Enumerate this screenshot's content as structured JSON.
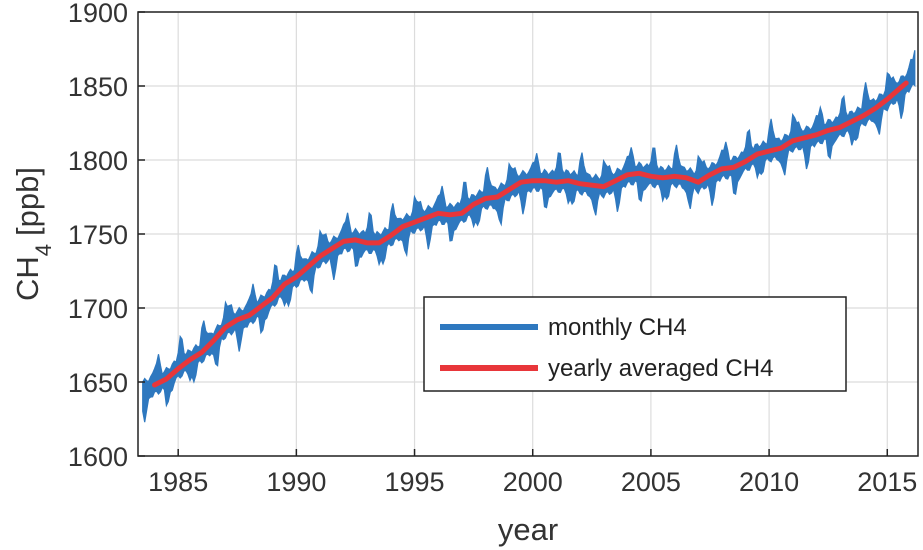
{
  "chart_data": {
    "type": "line",
    "xlabel": "year",
    "ylabel_main": "CH",
    "ylabel_subscript": "4",
    "ylabel_unit": "[ppb]",
    "xlim": [
      1983.3,
      2016.3
    ],
    "ylim": [
      1600,
      1900
    ],
    "x_ticks": [
      1985,
      1990,
      1995,
      2000,
      2005,
      2010,
      2015
    ],
    "x_tick_labels": [
      "1985",
      "1990",
      "1995",
      "2000",
      "2005",
      "2010",
      "2015"
    ],
    "y_ticks": [
      1600,
      1650,
      1700,
      1750,
      1800,
      1850,
      1900
    ],
    "y_tick_labels": [
      "1600",
      "1650",
      "1700",
      "1750",
      "1800",
      "1850",
      "1900"
    ],
    "grid": true,
    "legend_position": "lower-right",
    "series": [
      {
        "name": "monthly CH4",
        "color": "#2e78bf",
        "style": "monthly seasonal cycle around yearly mean",
        "points_year_start": 1983.5,
        "points_year_end": 2016.2,
        "points_per_year": 12,
        "seasonal_amplitude_ppb": 20
      },
      {
        "name": "yearly averaged CH4",
        "color": "#e8363a",
        "x": [
          1984.0,
          1984.5,
          1985.0,
          1985.5,
          1986.0,
          1986.5,
          1987.0,
          1987.5,
          1988.0,
          1988.5,
          1989.0,
          1989.5,
          1990.0,
          1990.5,
          1991.0,
          1991.5,
          1992.0,
          1992.5,
          1993.0,
          1993.5,
          1994.0,
          1994.5,
          1995.0,
          1995.5,
          1996.0,
          1996.5,
          1997.0,
          1997.5,
          1998.0,
          1998.5,
          1999.0,
          1999.5,
          2000.0,
          2000.5,
          2001.0,
          2001.5,
          2002.0,
          2002.5,
          2003.0,
          2003.5,
          2004.0,
          2004.5,
          2005.0,
          2005.5,
          2006.0,
          2006.5,
          2007.0,
          2007.5,
          2008.0,
          2008.5,
          2009.0,
          2009.5,
          2010.0,
          2010.5,
          2011.0,
          2011.5,
          2012.0,
          2012.5,
          2013.0,
          2013.5,
          2014.0,
          2014.5,
          2015.0,
          2015.5,
          2015.8
        ],
        "values": [
          1648,
          1652,
          1659,
          1665,
          1670,
          1678,
          1687,
          1692,
          1695,
          1701,
          1707,
          1716,
          1721,
          1728,
          1735,
          1740,
          1745,
          1746,
          1744,
          1744,
          1749,
          1755,
          1758,
          1761,
          1764,
          1763,
          1764,
          1770,
          1774,
          1775,
          1780,
          1785,
          1786,
          1786,
          1785,
          1786,
          1784,
          1783,
          1782,
          1786,
          1790,
          1791,
          1789,
          1788,
          1789,
          1788,
          1785,
          1790,
          1794,
          1795,
          1799,
          1804,
          1806,
          1808,
          1813,
          1815,
          1817,
          1820,
          1822,
          1826,
          1830,
          1835,
          1841,
          1848,
          1852
        ]
      }
    ]
  }
}
